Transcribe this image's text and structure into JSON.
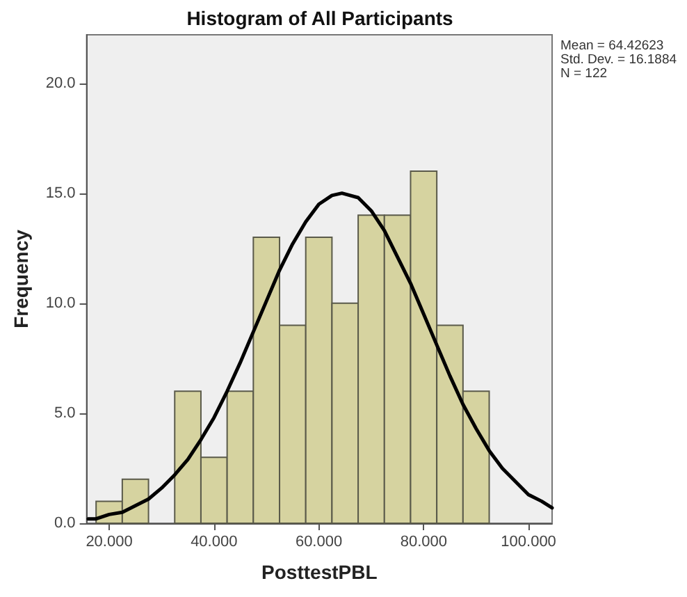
{
  "chart_data": {
    "type": "histogram",
    "title": "Histogram of All Participants",
    "xlabel": "PosttestPBL",
    "ylabel": "Frequency",
    "bins": [
      17.5,
      22.5,
      27.5,
      32.5,
      37.5,
      42.5,
      47.5,
      52.5,
      57.5,
      62.5,
      67.5,
      72.5,
      77.5,
      82.5,
      87.5,
      92.5
    ],
    "values": [
      1,
      2,
      0,
      6,
      3,
      6,
      13,
      9,
      13,
      10,
      14,
      14,
      16,
      9,
      6
    ],
    "color": "#d6d3a0",
    "series": [
      {
        "type": "line",
        "color": "#000000",
        "x": [
          16,
          17.5,
          20,
          22.5,
          25,
          27.5,
          30,
          32.5,
          35,
          37.5,
          40,
          42.5,
          45,
          47.5,
          50,
          52.5,
          55,
          57.5,
          60,
          62.5,
          64.4,
          67.5,
          70,
          72.5,
          75,
          77.5,
          80,
          82.5,
          85,
          87.5,
          90,
          92.5,
          95,
          97.5,
          100,
          102.5,
          104.5
        ],
        "values": [
          0.2,
          0.2,
          0.4,
          0.5,
          0.8,
          1.1,
          1.6,
          2.2,
          2.9,
          3.8,
          4.8,
          6.0,
          7.3,
          8.7,
          10.1,
          11.5,
          12.7,
          13.7,
          14.5,
          14.9,
          15.0,
          14.8,
          14.2,
          13.3,
          12.1,
          10.9,
          9.5,
          8.1,
          6.7,
          5.4,
          4.3,
          3.3,
          2.5,
          1.9,
          1.3,
          1.0,
          0.7
        ]
      }
    ],
    "xlim": [
      15.7,
      104.5
    ],
    "xticks": [
      {
        "value": 20,
        "label": "20.000"
      },
      {
        "value": 40,
        "label": "40.000"
      },
      {
        "value": 60,
        "label": "60.000"
      },
      {
        "value": 80,
        "label": "80.000"
      },
      {
        "value": 100,
        "label": "100.000"
      }
    ],
    "ylim": [
      0,
      22.2
    ],
    "yticks": [
      {
        "value": 0,
        "label": "0.0"
      },
      {
        "value": 5,
        "label": "5.0"
      },
      {
        "value": 10,
        "label": "10.0"
      },
      {
        "value": 15,
        "label": "15.0"
      },
      {
        "value": 20,
        "label": "20.0"
      }
    ],
    "annotations": [
      "Mean = 64.42623",
      "Std. Dev. = 16.1884",
      "N = 122"
    ],
    "grid": false,
    "marker": "none",
    "line_style": "solid"
  }
}
